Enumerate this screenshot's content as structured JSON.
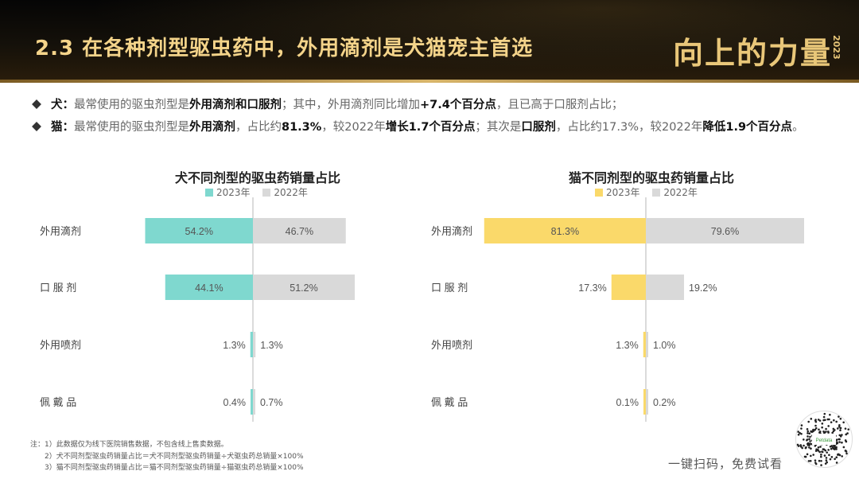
{
  "header": {
    "title": "2.3  在各种剂型驱虫药中，外用滴剂是犬猫宠主首选",
    "logo_text": "向上的力量",
    "logo_year": "2023"
  },
  "bullets": [
    {
      "label": "犬：",
      "parts": [
        {
          "t": "最常使用的驱虫剂型是",
          "b": false
        },
        {
          "t": "外用滴剂和口服剂",
          "b": true
        },
        {
          "t": "；其中，外用滴剂同比增加",
          "b": false
        },
        {
          "t": "+7.4个百分点",
          "b": true
        },
        {
          "t": "，且已高于口服剂占比；",
          "b": false
        }
      ]
    },
    {
      "label": "猫：",
      "parts": [
        {
          "t": "最常使用的驱虫剂型是",
          "b": false
        },
        {
          "t": "外用滴剂",
          "b": true
        },
        {
          "t": "，占比约",
          "b": false
        },
        {
          "t": "81.3%",
          "b": true
        },
        {
          "t": "，较2022年",
          "b": false
        },
        {
          "t": "增长1.7个百分点",
          "b": true
        },
        {
          "t": "；其次是",
          "b": false
        },
        {
          "t": "口服剂",
          "b": true
        },
        {
          "t": "，占比约17.3%，较2022年",
          "b": false
        },
        {
          "t": "降低1.9个百分点",
          "b": true
        },
        {
          "t": "。",
          "b": false
        }
      ]
    }
  ],
  "chart_data": [
    {
      "type": "bar",
      "title": "犬不同剂型的驱虫药销量占比",
      "categories": [
        "外用滴剂",
        "口 服 剂",
        "外用喷剂",
        "佩 戴 品"
      ],
      "series": [
        {
          "name": "2023年",
          "values": [
            54.2,
            44.1,
            1.3,
            0.4
          ],
          "labels": [
            "54.2%",
            "44.1%",
            "1.3%",
            "0.4%"
          ]
        },
        {
          "name": "2022年",
          "values": [
            46.7,
            51.2,
            1.3,
            0.7
          ],
          "labels": [
            "46.7%",
            "51.2%",
            "1.3%",
            "0.7%"
          ]
        }
      ],
      "colors": [
        "#7fd8cf",
        "#d9d9d9"
      ],
      "layout": "butterfly"
    },
    {
      "type": "bar",
      "title": "猫不同剂型的驱虫药销量占比",
      "categories": [
        "外用滴剂",
        "口 服 剂",
        "外用喷剂",
        "佩 戴 品"
      ],
      "series": [
        {
          "name": "2023年",
          "values": [
            81.3,
            17.3,
            1.3,
            0.1
          ],
          "labels": [
            "81.3%",
            "17.3%",
            "1.3%",
            "0.1%"
          ]
        },
        {
          "name": "2022年",
          "values": [
            79.6,
            19.2,
            1.0,
            0.2
          ],
          "labels": [
            "79.6%",
            "19.2%",
            "1.0%",
            "0.2%"
          ]
        }
      ],
      "colors": [
        "#fad96a",
        "#d9d9d9"
      ],
      "layout": "butterfly"
    }
  ],
  "notes": [
    "注：1）此数据仅为线下医院销售数据，不包含线上售卖数据。",
    "2）犬不同剂型驱虫药销量占比＝犬不同剂型驱虫药销量÷犬驱虫药总销量×100%",
    "3）猫不同剂型驱虫药销量占比＝猫不同剂型驱虫药销量÷猫驱虫药总销量×100%"
  ],
  "footer": {
    "scan_text": "一键扫码，免费试看",
    "qr_label": "Petdata"
  }
}
